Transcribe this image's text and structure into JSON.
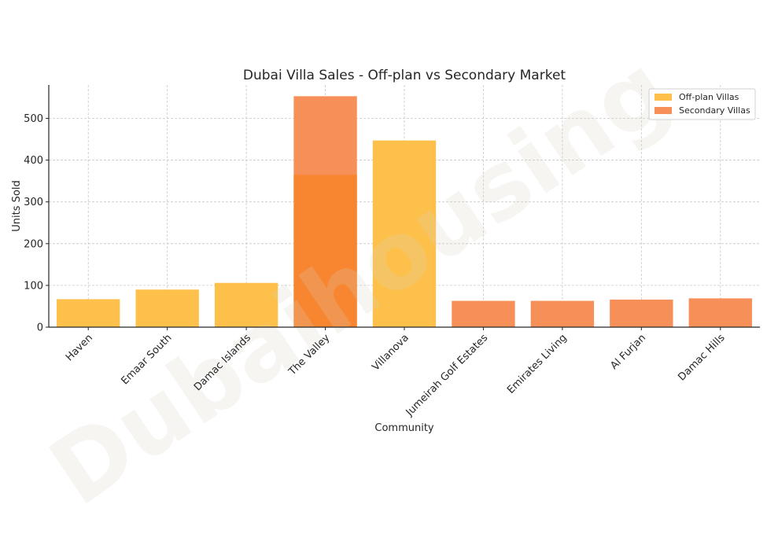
{
  "watermark": "Dubaihousing",
  "chart_data": {
    "type": "bar",
    "title": "Dubai Villa Sales - Off-plan vs Secondary Market",
    "xlabel": "Community",
    "ylabel": "Units Sold",
    "ylim": [
      0,
      580
    ],
    "yticks": [
      0,
      100,
      200,
      300,
      400,
      500
    ],
    "grid": true,
    "legend_position": "top-right",
    "categories": [
      "Haven",
      "Emaar South",
      "Damac Islands",
      "The Valley",
      "Villanova",
      "Jumeirah Golf Estates",
      "Emirates Living",
      "Al Furjan",
      "Damac Hills"
    ],
    "series": [
      {
        "name": "Off-plan Villas",
        "color": "#fdc04a",
        "values": [
          67,
          90,
          106,
          365,
          447,
          null,
          null,
          null,
          null
        ]
      },
      {
        "name": "Secondary Villas",
        "color": "#f79058",
        "values": [
          null,
          null,
          null,
          553,
          null,
          63,
          63,
          66,
          69
        ]
      }
    ],
    "overlap_color": "#f8862e"
  }
}
